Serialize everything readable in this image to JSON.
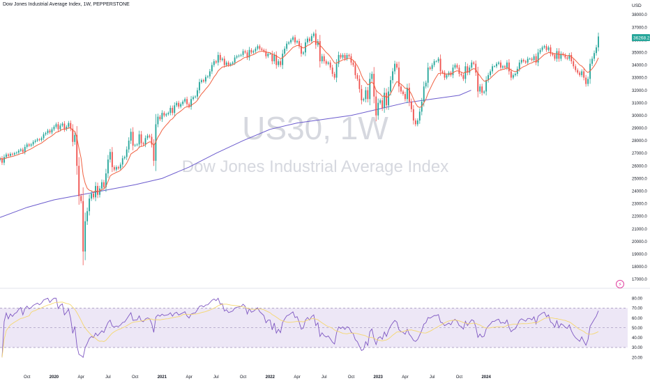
{
  "header": {
    "title": "Dow Jones Industrial Average Index, 1W, PEPPERSTONE",
    "currency": "USD"
  },
  "watermark": {
    "symbol": "US30, 1W",
    "description": "Dow Jones Industrial Average Index"
  },
  "last_price_label": "36268.2",
  "icons": {
    "alert": "lightning-icon"
  },
  "colors": {
    "up": "#26a69a",
    "down": "#ef5350",
    "ema": "#f06040",
    "ma200": "#6a5acd",
    "rsi": "#7e57c2",
    "rsi_ma": "#f5d76e",
    "rsi_band": "#ede7f6"
  },
  "chart_data": [
    {
      "type": "candlestick",
      "y_ticks": [
        "38000.0",
        "37000.0",
        "36000.0",
        "35000.0",
        "34000.0",
        "33000.0",
        "32000.0",
        "31000.0",
        "30000.0",
        "29000.0",
        "28000.0",
        "27000.0",
        "26000.0",
        "25000.0",
        "24000.0",
        "23000.0",
        "22000.0",
        "21000.0",
        "20000.0",
        "19000.0",
        "18000.0",
        "17000.0"
      ],
      "ylim": [
        16500,
        38500
      ],
      "x_ticks": [
        "Oct",
        "2020",
        "Apr",
        "Jul",
        "Oct",
        "2021",
        "Apr",
        "Jul",
        "Oct",
        "2022",
        "Apr",
        "Jul",
        "Oct",
        "2023",
        "Apr",
        "Jul",
        "Oct",
        "2024"
      ],
      "x_tick_positions": [
        2019.75,
        2020.0,
        2020.25,
        2020.5,
        2020.75,
        2021.0,
        2021.25,
        2021.5,
        2021.75,
        2022.0,
        2022.25,
        2022.5,
        2022.75,
        2023.0,
        2023.25,
        2023.5,
        2023.75,
        2024.0
      ],
      "x_start": 2019.5,
      "week": 0.01923,
      "closes": [
        26600,
        26250,
        26700,
        26900,
        26800,
        26950,
        26900,
        27000,
        27050,
        27200,
        27300,
        27100,
        27500,
        27700,
        27600,
        27700,
        27900,
        28000,
        28100,
        28050,
        28200,
        28500,
        28600,
        28800,
        28650,
        28900,
        29100,
        29300,
        28900,
        29200,
        29350,
        28900,
        29100,
        29400,
        28950,
        27900,
        28450,
        26000,
        23600,
        23200,
        19200,
        21600,
        22400,
        23400,
        23800,
        23500,
        24400,
        23700,
        24200,
        24700,
        24300,
        25400,
        26500,
        27100,
        25900,
        25700,
        25900,
        25800,
        26100,
        26600,
        26700,
        27300,
        28000,
        28700,
        27600,
        27650,
        27700,
        28500,
        27800,
        27700,
        28200,
        28400,
        28300,
        27700,
        26400,
        29300,
        29900,
        29700,
        30200,
        30000,
        30100,
        30200,
        30600,
        30200,
        30800,
        31000,
        30700,
        30900,
        31100,
        31300,
        30900,
        30700,
        31300,
        31450,
        31500,
        32000,
        32650,
        32800,
        32700,
        33050,
        33100,
        33500,
        34000,
        34300,
        34200,
        34800,
        34400,
        34500,
        34000,
        34200,
        34000,
        34100,
        34200,
        34600,
        34700,
        34750,
        34800,
        35100,
        35000,
        34600,
        35200,
        35000,
        35100,
        35300,
        35500,
        35300,
        35200,
        35100,
        34700,
        34900,
        34900,
        34300,
        34800,
        34000,
        34300,
        34000,
        34900,
        35300,
        35700,
        35800,
        36000,
        36200,
        35800,
        35900,
        35500,
        34900,
        35000,
        35800,
        36100,
        35900,
        36300,
        36500,
        35600,
        35900,
        34300,
        34700,
        34300,
        34100,
        34200,
        33800,
        33300,
        33000,
        34100,
        34800,
        34600,
        34800,
        34500,
        34800,
        34700,
        34200,
        34000,
        33200,
        32900,
        32100,
        31200,
        31300,
        32000,
        31300,
        32900,
        33300,
        31500,
        30000,
        31000,
        31200,
        30600,
        31800,
        30800,
        31900,
        32800,
        33500,
        34100,
        33800,
        32300,
        31900,
        31700,
        31300,
        32200,
        31100,
        30500,
        29600,
        29300,
        29600,
        30300,
        31100,
        32300,
        32600,
        33800,
        33700,
        34000,
        34300,
        34300,
        34500,
        33500,
        33400,
        33000,
        33200,
        33400,
        33200,
        33800,
        34000,
        33800,
        33300,
        33200,
        32900,
        33900,
        33400,
        33800,
        34200,
        34100,
        33400,
        31900,
        32300,
        31800,
        31900,
        32800,
        33200,
        33500,
        33900,
        33900,
        34100,
        34200,
        33800,
        33900,
        33800,
        34200,
        33500,
        33000,
        33200,
        33300,
        33700,
        34200,
        34400,
        34300,
        34200,
        34500,
        34500,
        34400,
        34700,
        34200,
        35000,
        35200,
        35400,
        35500,
        35200,
        35400,
        34900,
        34800,
        34500,
        35100,
        34500,
        34900,
        34800,
        34600,
        34500,
        34800,
        34300,
        33900,
        33600,
        33400,
        33200,
        33500,
        33000,
        32500,
        32900,
        34100,
        34500,
        34950,
        35400,
        36268
      ],
      "ema_period": 10,
      "ma200_line": [
        [
          2019.5,
          21900
        ],
        [
          2019.75,
          22700
        ],
        [
          2020.0,
          23300
        ],
        [
          2020.25,
          23700
        ],
        [
          2020.5,
          24100
        ],
        [
          2020.75,
          24500
        ],
        [
          2021.0,
          25000
        ],
        [
          2021.25,
          25900
        ],
        [
          2021.5,
          27000
        ],
        [
          2021.75,
          28000
        ],
        [
          2022.0,
          28900
        ],
        [
          2022.25,
          29400
        ],
        [
          2022.5,
          29700
        ],
        [
          2022.75,
          30000
        ],
        [
          2023.0,
          30500
        ],
        [
          2023.25,
          31000
        ],
        [
          2023.5,
          31300
        ],
        [
          2023.75,
          31600
        ],
        [
          2023.86,
          32000
        ]
      ]
    },
    {
      "type": "line",
      "y_ticks": [
        "80.00",
        "70.00",
        "60.00",
        "50.00",
        "40.00",
        "30.00",
        "20.00"
      ],
      "ylim": [
        18,
        83
      ],
      "bands": [
        70,
        50,
        30
      ],
      "rsi_ma_period": 14
    }
  ]
}
